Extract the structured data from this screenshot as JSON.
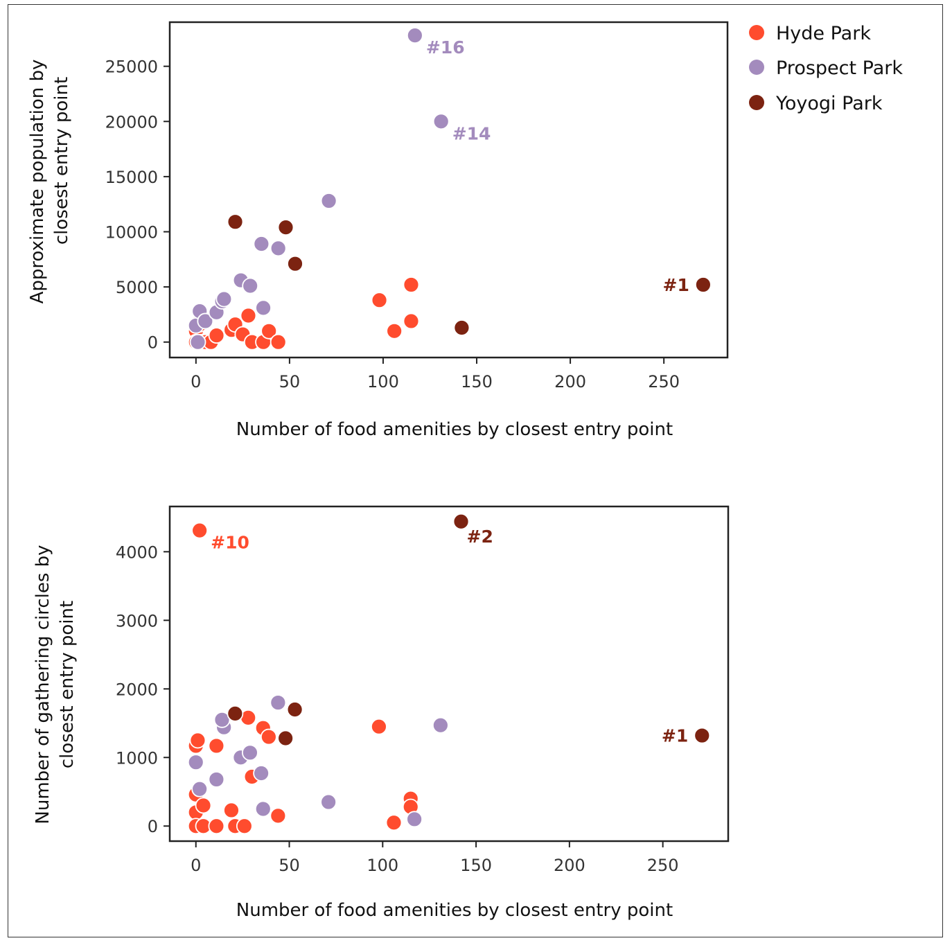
{
  "colors": {
    "Hyde Park": "#ff4c2e",
    "Prospect Park": "#a38bbd",
    "Yoyogi Park": "#7c2311"
  },
  "legend": [
    {
      "name": "Hyde Park",
      "color": "#ff4c2e"
    },
    {
      "name": "Prospect Park",
      "color": "#a38bbd"
    },
    {
      "name": "Yoyogi Park",
      "color": "#7c2311"
    }
  ],
  "chart_data": [
    {
      "type": "scatter",
      "xlabel": "Number of food amenities by closest entry point",
      "ylabel_lines": [
        "Approximate population by",
        "closest entry point"
      ],
      "xlim": [
        -14,
        284
      ],
      "ylim": [
        -1400,
        29000
      ],
      "xticks": [
        0,
        50,
        100,
        150,
        200,
        250
      ],
      "yticks": [
        0,
        5000,
        10000,
        15000,
        20000,
        25000
      ],
      "series": [
        {
          "name": "Hyde Park",
          "points": [
            [
              0,
              1000
            ],
            [
              0,
              0
            ],
            [
              1,
              1700
            ],
            [
              2,
              1600
            ],
            [
              3,
              0
            ],
            [
              5,
              0
            ],
            [
              8,
              0
            ],
            [
              11,
              600
            ],
            [
              19,
              1100
            ],
            [
              21,
              1600
            ],
            [
              25,
              700
            ],
            [
              28,
              2400
            ],
            [
              30,
              0
            ],
            [
              36,
              0
            ],
            [
              39,
              1000
            ],
            [
              44,
              0
            ],
            [
              98,
              3800
            ],
            [
              106,
              1000
            ],
            [
              115,
              5200
            ],
            [
              115,
              1900
            ]
          ]
        },
        {
          "name": "Prospect Park",
          "points": [
            [
              0,
              1500
            ],
            [
              1,
              0
            ],
            [
              2,
              2800
            ],
            [
              5,
              1900
            ],
            [
              11,
              2700
            ],
            [
              14,
              3700
            ],
            [
              15,
              3900
            ],
            [
              24,
              5600
            ],
            [
              29,
              5100
            ],
            [
              35,
              8900
            ],
            [
              36,
              3100
            ],
            [
              44,
              8500
            ],
            [
              71,
              12800
            ],
            [
              117,
              27800
            ],
            [
              131,
              20000
            ]
          ]
        },
        {
          "name": "Yoyogi Park",
          "points": [
            [
              21,
              10900
            ],
            [
              48,
              10400
            ],
            [
              53,
              7100
            ],
            [
              142,
              1300
            ],
            [
              271,
              5200
            ]
          ]
        }
      ],
      "annotations": [
        {
          "text": "#16",
          "series": "Prospect Park",
          "x": 117,
          "y": 27800,
          "side": "right"
        },
        {
          "text": "#14",
          "series": "Prospect Park",
          "x": 131,
          "y": 20000,
          "side": "right"
        },
        {
          "text": "#1",
          "series": "Yoyogi Park",
          "x": 271,
          "y": 5200,
          "side": "left"
        }
      ]
    },
    {
      "type": "scatter",
      "xlabel": "Number of food amenities by closest entry point",
      "ylabel_lines": [
        "Number of gathering circles by",
        "closest entry point"
      ],
      "xlim": [
        -14,
        285
      ],
      "ylim": [
        -220,
        4660
      ],
      "xticks": [
        0,
        50,
        100,
        150,
        200,
        250
      ],
      "yticks": [
        0,
        1000,
        2000,
        3000,
        4000
      ],
      "series": [
        {
          "name": "Hyde Park",
          "points": [
            [
              0,
              1170
            ],
            [
              1,
              1250
            ],
            [
              0,
              460
            ],
            [
              0,
              200
            ],
            [
              4,
              300
            ],
            [
              0,
              0
            ],
            [
              4,
              0
            ],
            [
              11,
              0
            ],
            [
              11,
              1170
            ],
            [
              19,
              230
            ],
            [
              21,
              0
            ],
            [
              26,
              0
            ],
            [
              28,
              1580
            ],
            [
              30,
              720
            ],
            [
              36,
              1430
            ],
            [
              39,
              1300
            ],
            [
              44,
              150
            ],
            [
              98,
              1450
            ],
            [
              106,
              50
            ],
            [
              115,
              400
            ],
            [
              115,
              280
            ],
            [
              2,
              4310
            ]
          ]
        },
        {
          "name": "Prospect Park",
          "points": [
            [
              0,
              930
            ],
            [
              2,
              540
            ],
            [
              11,
              680
            ],
            [
              15,
              1440
            ],
            [
              14,
              1550
            ],
            [
              24,
              1000
            ],
            [
              29,
              1070
            ],
            [
              35,
              770
            ],
            [
              36,
              250
            ],
            [
              44,
              1800
            ],
            [
              71,
              350
            ],
            [
              117,
              100
            ],
            [
              131,
              1470
            ]
          ]
        },
        {
          "name": "Yoyogi Park",
          "points": [
            [
              21,
              1640
            ],
            [
              48,
              1280
            ],
            [
              53,
              1700
            ],
            [
              142,
              4440
            ],
            [
              271,
              1320
            ]
          ]
        }
      ],
      "annotations": [
        {
          "text": "#10",
          "series": "Hyde Park",
          "x": 2,
          "y": 4310,
          "side": "right"
        },
        {
          "text": "#2",
          "series": "Yoyogi Park",
          "x": 142,
          "y": 4440,
          "side": "below-right"
        },
        {
          "text": "#1",
          "series": "Yoyogi Park",
          "x": 271,
          "y": 1320,
          "side": "left"
        }
      ]
    }
  ]
}
